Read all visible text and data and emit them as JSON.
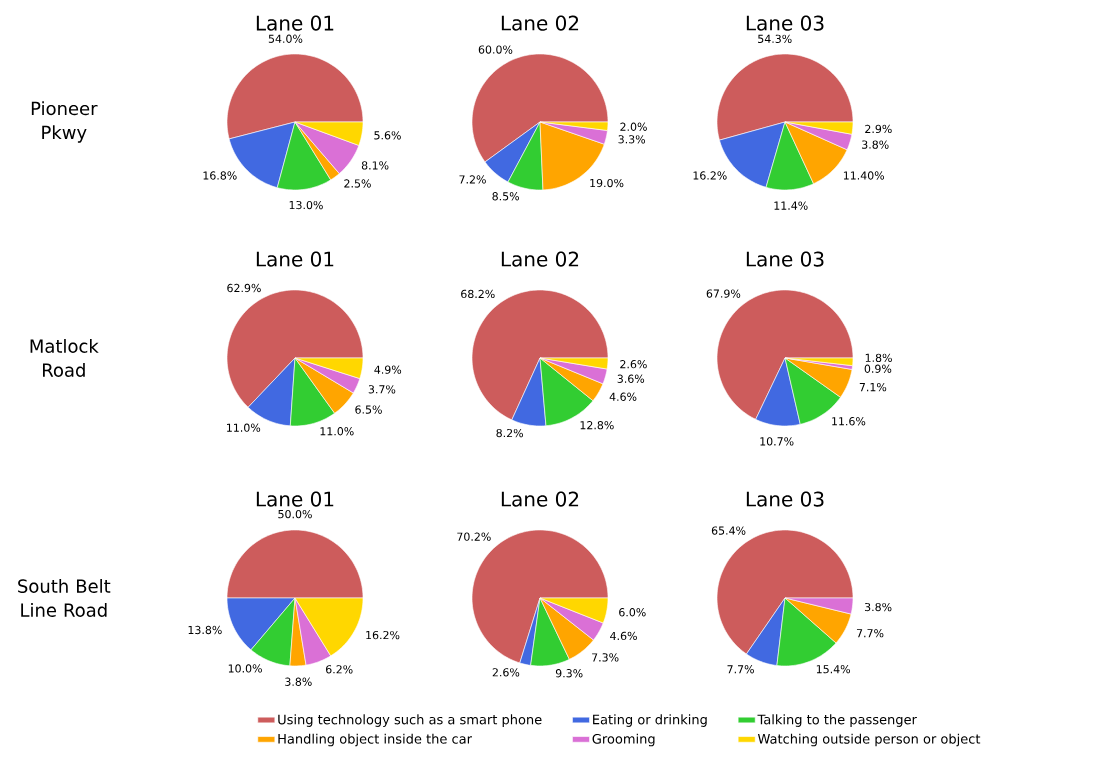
{
  "chart_data": [
    {
      "type": "pie",
      "title": "Lane 01",
      "ylabel": "Pioneer Pkwy",
      "legend": "bottom",
      "categories": [
        "Using technology such as a smart phone",
        "Eating or drinking",
        "Talking to the passenger",
        "Handling object inside the car",
        "Grooming",
        "Watching outside person or object"
      ],
      "values": [
        54.0,
        16.8,
        13.0,
        2.5,
        8.1,
        5.6
      ],
      "colors": [
        "#cd5c5c",
        "#4169e1",
        "#32cd32",
        "#ffa500",
        "#da70d6",
        "#ffd700"
      ],
      "value_labels": [
        "54.0%",
        "16.8%",
        "13.0%",
        "2.5%",
        "8.1%",
        "5.6%"
      ]
    },
    {
      "type": "pie",
      "title": "Lane 02",
      "categories": [
        null,
        null,
        null,
        null,
        null,
        null
      ],
      "values": [
        60.0,
        7.2,
        8.5,
        19.0,
        3.3,
        2.0
      ],
      "colors": [
        "#cd5c5c",
        "#4169e1",
        "#32cd32",
        "#ffa500",
        "#da70d6",
        "#ffd700"
      ],
      "value_labels": [
        "60.0%",
        "7.2%",
        "8.5%",
        "19.0%",
        "3.3%",
        "2.0%"
      ]
    },
    {
      "type": "pie",
      "title": "Lane 03",
      "categories": [
        null,
        null,
        null,
        null,
        null,
        null
      ],
      "values": [
        54.3,
        16.2,
        11.4,
        11.4,
        3.8,
        2.9
      ],
      "colors": [
        "#cd5c5c",
        "#4169e1",
        "#32cd32",
        "#ffa500",
        "#da70d6",
        "#ffd700"
      ],
      "value_labels": [
        "54.3%",
        "16.2%",
        "11.4%",
        "11.40%",
        "3.8%",
        "2.9%"
      ]
    },
    {
      "type": "pie",
      "title": "Lane 01",
      "ylabel": "Matlock Road",
      "categories": [
        null,
        null,
        null,
        null,
        null,
        null
      ],
      "values": [
        62.9,
        11.0,
        11.0,
        6.5,
        3.7,
        4.9
      ],
      "colors": [
        "#cd5c5c",
        "#4169e1",
        "#32cd32",
        "#ffa500",
        "#da70d6",
        "#ffd700"
      ],
      "value_labels": [
        "62.9%",
        "11.0%",
        "11.0%",
        "6.5%",
        "3.7%",
        "4.9%"
      ]
    },
    {
      "type": "pie",
      "title": "Lane 02",
      "categories": [
        null,
        null,
        null,
        null,
        null,
        null
      ],
      "values": [
        68.2,
        8.2,
        12.8,
        4.6,
        3.6,
        2.6
      ],
      "colors": [
        "#cd5c5c",
        "#4169e1",
        "#32cd32",
        "#ffa500",
        "#da70d6",
        "#ffd700"
      ],
      "value_labels": [
        "68.2%",
        "8.2%",
        "12.8%",
        "4.6%",
        "3.6%",
        "2.6%"
      ]
    },
    {
      "type": "pie",
      "title": "Lane 03",
      "categories": [
        null,
        null,
        null,
        null,
        null,
        null
      ],
      "values": [
        67.9,
        10.7,
        11.6,
        7.1,
        0.9,
        1.8
      ],
      "colors": [
        "#cd5c5c",
        "#4169e1",
        "#32cd32",
        "#ffa500",
        "#da70d6",
        "#ffd700"
      ],
      "value_labels": [
        "67.9%",
        "10.7%",
        "11.6%",
        "7.1%",
        "0.9%",
        "1.8%"
      ]
    },
    {
      "type": "pie",
      "title": "Lane 01",
      "ylabel": "South Belt Line Road",
      "categories": [
        null,
        null,
        null,
        null,
        null,
        null
      ],
      "values": [
        50.0,
        13.8,
        10.0,
        3.8,
        6.2,
        16.2
      ],
      "colors": [
        "#cd5c5c",
        "#4169e1",
        "#32cd32",
        "#ffa500",
        "#da70d6",
        "#ffd700"
      ],
      "value_labels": [
        "50.0%",
        "13.8%",
        "10.0%",
        "3.8%",
        "6.2%",
        "16.2%"
      ]
    },
    {
      "type": "pie",
      "title": "Lane 02",
      "categories": [
        null,
        null,
        null,
        null,
        null,
        null
      ],
      "values": [
        70.2,
        2.6,
        9.3,
        7.3,
        4.6,
        6.0
      ],
      "colors": [
        "#cd5c5c",
        "#4169e1",
        "#32cd32",
        "#ffa500",
        "#da70d6",
        "#ffd700"
      ],
      "value_labels": [
        "70.2%",
        "2.6%",
        "9.3%",
        "7.3%",
        "4.6%",
        "6.0%"
      ]
    },
    {
      "type": "pie",
      "title": "Lane 03",
      "categories": [
        null,
        null,
        null,
        null,
        null
      ],
      "values": [
        65.4,
        7.7,
        15.4,
        7.7,
        3.8
      ],
      "colors": [
        "#cd5c5c",
        "#4169e1",
        "#32cd32",
        "#ffa500",
        "#da70d6"
      ],
      "value_labels": [
        "65.4%",
        "7.7%",
        "15.4%",
        "7.7%",
        "3.8%"
      ]
    }
  ]
}
